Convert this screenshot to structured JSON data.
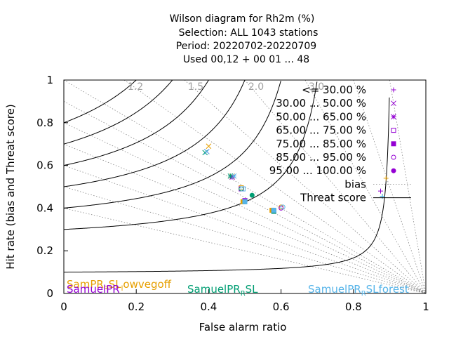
{
  "title_lines": [
    "Wilson diagram  for Rh2m (%)",
    "Selection: ALL   1043 stations",
    "Period: 20220702-20220709",
    "Used  00,12  + 00 01 ... 48"
  ],
  "chart_data": {
    "type": "scatter",
    "xlabel": "False alarm ratio",
    "ylabel": "Hit rate (bias and Threat score)",
    "xlim": [
      0,
      1
    ],
    "ylim": [
      0,
      1
    ],
    "x_ticks": [
      "0",
      "0.2",
      "0.4",
      "0.6",
      "0.8",
      "1"
    ],
    "y_ticks": [
      "0",
      "0.2",
      "0.4",
      "0.6",
      "0.8",
      "1"
    ],
    "bias_labels": [
      {
        "text": "1.2",
        "value": 1.2
      },
      {
        "text": "1.5",
        "value": 1.5
      },
      {
        "text": "2.0",
        "value": 2.0
      },
      {
        "text": "3.0",
        "value": 3.0
      }
    ],
    "bias_rays": [
      0.4,
      0.5,
      0.6,
      0.7,
      0.8,
      0.9,
      1.0,
      1.2,
      1.5,
      2.0,
      3.0,
      5.0,
      10.0
    ],
    "threat_score_curves": [
      0.1,
      0.3,
      0.4,
      0.5,
      0.6,
      0.7,
      0.8
    ],
    "legend": {
      "placement": "top-right",
      "entries": [
        {
          "label": "<= 30.00 %",
          "marker": "plus"
        },
        {
          "label": "30.00 ... 50.00 %",
          "marker": "cross"
        },
        {
          "label": "50.00 ... 65.00 %",
          "marker": "star"
        },
        {
          "label": "65.00 ... 75.00 %",
          "marker": "square-open"
        },
        {
          "label": "75.00 ... 85.00 %",
          "marker": "square-filled"
        },
        {
          "label": "85.00 ... 95.00 %",
          "marker": "circle-open"
        },
        {
          "label": "95.00 ... 100.00 %",
          "marker": "circle-filled"
        },
        {
          "label": "bias",
          "marker": "dotted-line"
        },
        {
          "label": "Threat score",
          "marker": "solid-line"
        }
      ],
      "marker_color": "#9400d3"
    },
    "series": [
      {
        "name": "SamPR_SL_lowvegoff",
        "color": "#e69f00",
        "points": [
          {
            "x": 0.4,
            "y": 0.69,
            "m": "cross"
          },
          {
            "x": 0.465,
            "y": 0.55,
            "m": "star"
          },
          {
            "x": 0.49,
            "y": 0.495,
            "m": "square-open"
          },
          {
            "x": 0.495,
            "y": 0.43,
            "m": "square-filled"
          },
          {
            "x": 0.575,
            "y": 0.39,
            "m": "square-filled"
          },
          {
            "x": 0.6,
            "y": 0.405,
            "m": "circle-open"
          },
          {
            "x": 0.89,
            "y": 0.54,
            "m": "plus"
          }
        ]
      },
      {
        "name": "SamuelPR",
        "color": "#9400d3",
        "points": [
          {
            "x": 0.395,
            "y": 0.665,
            "m": "cross"
          },
          {
            "x": 0.465,
            "y": 0.545,
            "m": "star"
          },
          {
            "x": 0.49,
            "y": 0.49,
            "m": "square-open"
          },
          {
            "x": 0.5,
            "y": 0.435,
            "m": "square-filled"
          },
          {
            "x": 0.58,
            "y": 0.385,
            "m": "square-filled"
          },
          {
            "x": 0.6,
            "y": 0.4,
            "m": "circle-open"
          },
          {
            "x": 0.875,
            "y": 0.48,
            "m": "plus"
          }
        ]
      },
      {
        "name": "SamuelPR_SL",
        "color": "#009e73",
        "points": [
          {
            "x": 0.39,
            "y": 0.66,
            "m": "cross"
          },
          {
            "x": 0.46,
            "y": 0.55,
            "m": "star"
          },
          {
            "x": 0.49,
            "y": 0.49,
            "m": "circle-open"
          },
          {
            "x": 0.5,
            "y": 0.43,
            "m": "square-filled"
          },
          {
            "x": 0.52,
            "y": 0.46,
            "m": "circle-filled"
          },
          {
            "x": 0.58,
            "y": 0.385,
            "m": "square-filled"
          },
          {
            "x": 0.88,
            "y": 0.455,
            "m": "plus"
          }
        ]
      },
      {
        "name": "SamuelPR_SL_forest",
        "color": "#56b4e9",
        "points": [
          {
            "x": 0.395,
            "y": 0.665,
            "m": "cross"
          },
          {
            "x": 0.47,
            "y": 0.55,
            "m": "star"
          },
          {
            "x": 0.495,
            "y": 0.49,
            "m": "square-open"
          },
          {
            "x": 0.5,
            "y": 0.43,
            "m": "square-filled"
          },
          {
            "x": 0.58,
            "y": 0.39,
            "m": "square-filled"
          },
          {
            "x": 0.605,
            "y": 0.405,
            "m": "circle-open"
          },
          {
            "x": 0.88,
            "y": 0.455,
            "m": "plus"
          }
        ]
      }
    ]
  },
  "experiment_labels": [
    {
      "text": "SamPR_R_SL_l_owvegoff",
      "color": "#e69f00"
    },
    {
      "text": "SamuelPR",
      "color": "#9400d3"
    },
    {
      "text": "SamuelPR_R_SL",
      "color": "#009e73"
    },
    {
      "text": "SamuelPR_R_SL_forest",
      "color": "#56b4e9"
    }
  ]
}
